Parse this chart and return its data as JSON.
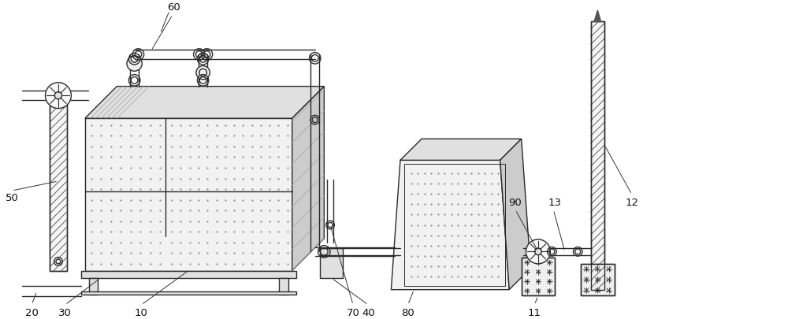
{
  "bg_color": "#ffffff",
  "line_color": "#2a2a2a",
  "fill_light": "#f2f2f2",
  "fill_mid": "#e0e0e0",
  "fill_dark": "#cccccc",
  "dot_color": "#888888",
  "label_color": "#111111",
  "fig_width": 10.0,
  "fig_height": 4.06,
  "dpi": 100
}
